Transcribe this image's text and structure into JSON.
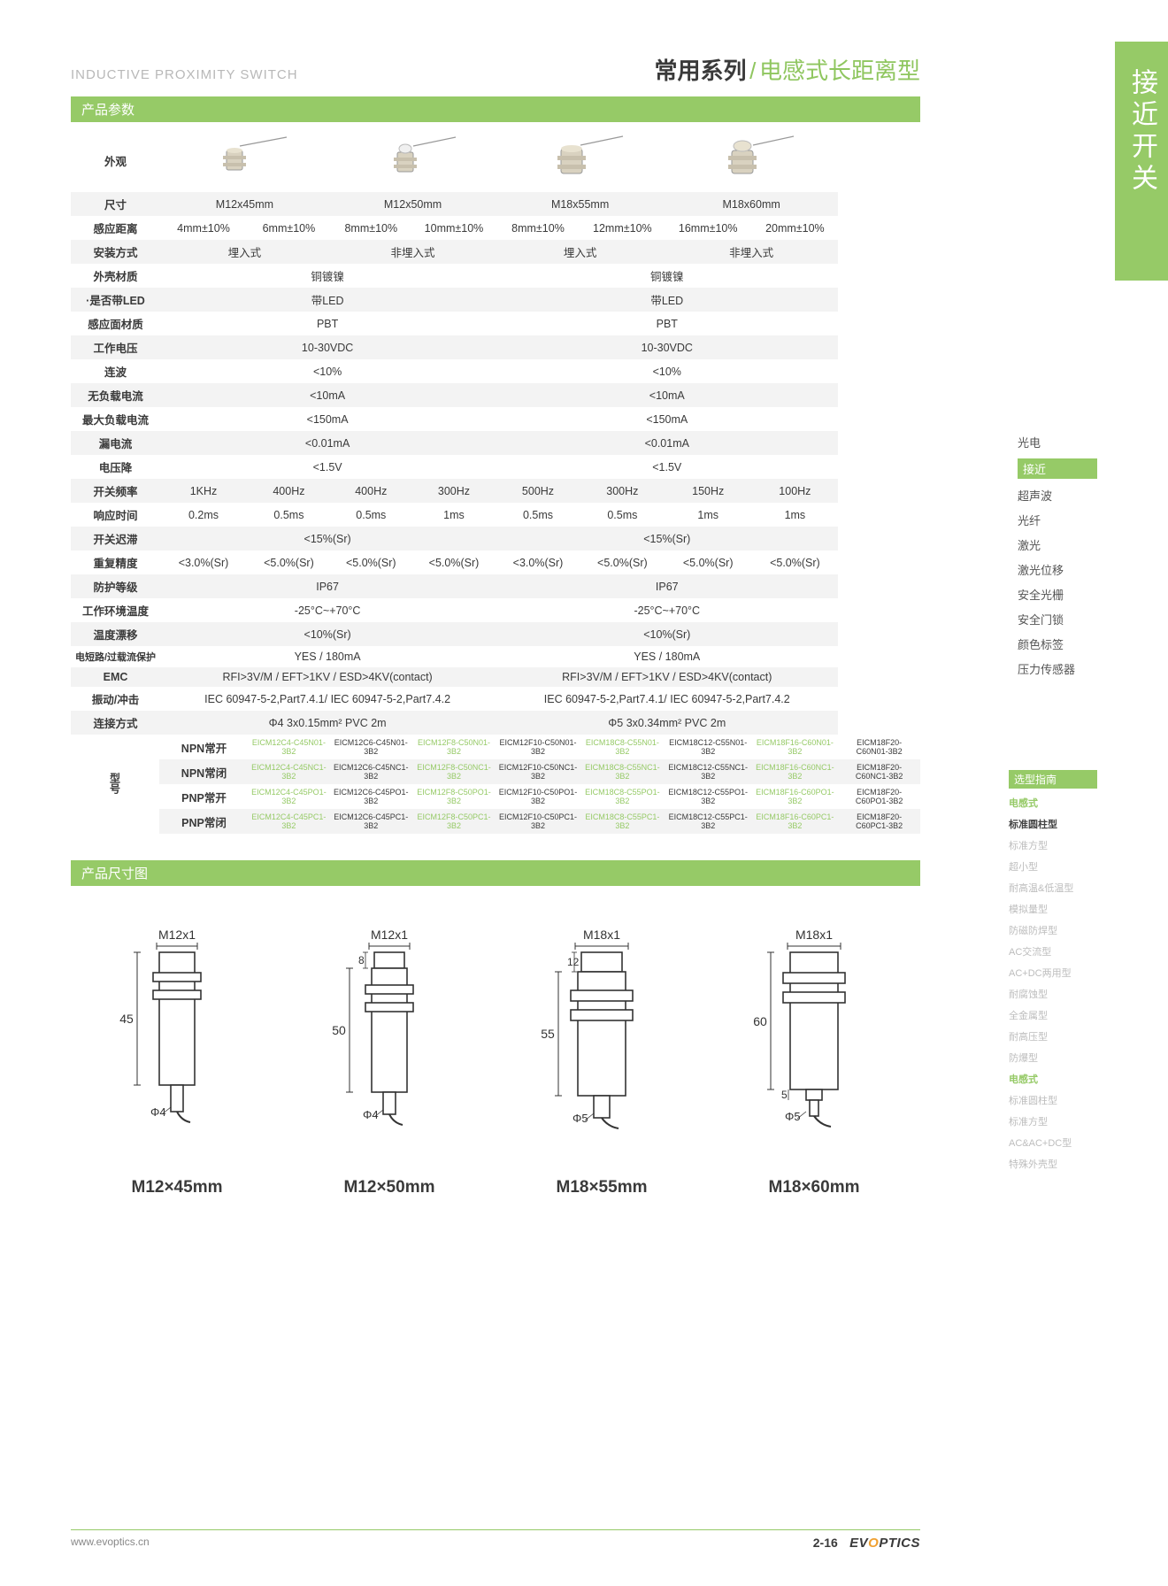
{
  "header": {
    "subtitle": "INDUCTIVE PROXIMITY SWITCH",
    "title_main": "常用系列",
    "title_sub": "电感式长距离型",
    "slash": "/"
  },
  "side_tab": "接近开关",
  "section1": "产品参数",
  "section2": "产品尺寸图",
  "side_nav": [
    "光电",
    "接近",
    "超声波",
    "光纤",
    "激光",
    "激光位移",
    "安全光栅",
    "安全门锁",
    "颜色标签",
    "压力传感器"
  ],
  "side_nav_active_idx": 1,
  "side_nav2_header": "选型指南",
  "side_nav2": [
    {
      "t": "电感式",
      "cls": "accent"
    },
    {
      "t": "标准圆柱型",
      "cls": "bold"
    },
    {
      "t": "标准方型",
      "cls": ""
    },
    {
      "t": "超小型",
      "cls": ""
    },
    {
      "t": "耐高温&低温型",
      "cls": ""
    },
    {
      "t": "模拟量型",
      "cls": ""
    },
    {
      "t": "防磁防焊型",
      "cls": ""
    },
    {
      "t": "AC交流型",
      "cls": ""
    },
    {
      "t": "AC+DC两用型",
      "cls": ""
    },
    {
      "t": "耐腐蚀型",
      "cls": ""
    },
    {
      "t": "全金属型",
      "cls": ""
    },
    {
      "t": "耐高压型",
      "cls": ""
    },
    {
      "t": "防爆型",
      "cls": ""
    },
    {
      "t": "电感式",
      "cls": "accent"
    },
    {
      "t": "标准圆柱型",
      "cls": ""
    },
    {
      "t": "标准方型",
      "cls": ""
    },
    {
      "t": "AC&AC+DC型",
      "cls": ""
    },
    {
      "t": "特殊外壳型",
      "cls": ""
    }
  ],
  "spec": {
    "labels": {
      "appearance": "外观",
      "size": "尺寸",
      "sense_dist": "感应距离",
      "mount": "安装方式",
      "housing": "外壳材质",
      "led": "·是否带LED",
      "face": "感应面材质",
      "voltage": "工作电压",
      "ripple": "连波",
      "noload": "无负载电流",
      "maxload": "最大负载电流",
      "leak": "漏电流",
      "vdrop": "电压降",
      "freq": "开关频率",
      "response": "响应时间",
      "hyst": "开关迟滞",
      "repeat": "重复精度",
      "ip": "防护等级",
      "temp": "工作环境温度",
      "drift": "温度漂移",
      "protect": "电短路/过载流保护",
      "emc": "EMC",
      "vib": "振动/冲击",
      "conn": "连接方式",
      "model": "型号",
      "npn_no": "NPN常开",
      "npn_nc": "NPN常闭",
      "pnp_no": "PNP常开",
      "pnp_nc": "PNP常闭"
    },
    "sizes": [
      "M12x45mm",
      "M12x50mm",
      "M18x55mm",
      "M18x60mm"
    ],
    "sense": [
      "4mm±10%",
      "6mm±10%",
      "8mm±10%",
      "10mm±10%",
      "8mm±10%",
      "12mm±10%",
      "16mm±10%",
      "20mm±10%"
    ],
    "mount": [
      "埋入式",
      "非埋入式",
      "埋入式",
      "非埋入式"
    ],
    "housing": [
      "铜镀镍",
      "铜镀镍"
    ],
    "led": [
      "带LED",
      "带LED"
    ],
    "face": [
      "PBT",
      "PBT"
    ],
    "voltage": [
      "10-30VDC",
      "10-30VDC"
    ],
    "ripple": [
      "<10%",
      "<10%"
    ],
    "noload": [
      "<10mA",
      "<10mA"
    ],
    "maxload": [
      "<150mA",
      "<150mA"
    ],
    "leak": [
      "<0.01mA",
      "<0.01mA"
    ],
    "vdrop": [
      "<1.5V",
      "<1.5V"
    ],
    "freq": [
      "1KHz",
      "400Hz",
      "400Hz",
      "300Hz",
      "500Hz",
      "300Hz",
      "150Hz",
      "100Hz"
    ],
    "response": [
      "0.2ms",
      "0.5ms",
      "0.5ms",
      "1ms",
      "0.5ms",
      "0.5ms",
      "1ms",
      "1ms"
    ],
    "hyst": [
      "<15%(Sr)",
      "<15%(Sr)"
    ],
    "repeat": [
      "<3.0%(Sr)",
      "<5.0%(Sr)",
      "<5.0%(Sr)",
      "<5.0%(Sr)",
      "<3.0%(Sr)",
      "<5.0%(Sr)",
      "<5.0%(Sr)",
      "<5.0%(Sr)"
    ],
    "ip": [
      "IP67",
      "IP67"
    ],
    "temp": [
      "-25°C~+70°C",
      "-25°C~+70°C"
    ],
    "drift": [
      "<10%(Sr)",
      "<10%(Sr)"
    ],
    "protect": [
      "YES / 180mA",
      "YES / 180mA"
    ],
    "emc": [
      "RFI>3V/M / EFT>1KV / ESD>4KV(contact)",
      "RFI>3V/M / EFT>1KV / ESD>4KV(contact)"
    ],
    "vib": [
      "IEC 60947-5-2,Part7.4.1/ IEC 60947-5-2,Part7.4.2",
      "IEC 60947-5-2,Part7.4.1/ IEC 60947-5-2,Part7.4.2"
    ],
    "conn": [
      "Φ4 3x0.15mm² PVC 2m",
      "Φ5 3x0.34mm² PVC 2m"
    ],
    "npn_no": [
      "EICM12C4-C45N01-3B2",
      "EICM12C6-C45N01-3B2",
      "EICM12F8-C50N01-3B2",
      "EICM12F10-C50N01-3B2",
      "EICM18C8-C55N01-3B2",
      "EICM18C12-C55N01-3B2",
      "EICM18F16-C60N01-3B2",
      "EICM18F20-C60N01-3B2"
    ],
    "npn_nc": [
      "EICM12C4-C45NC1-3B2",
      "EICM12C6-C45NC1-3B2",
      "EICM12F8-C50NC1-3B2",
      "EICM12F10-C50NC1-3B2",
      "EICM18C8-C55NC1-3B2",
      "EICM18C12-C55NC1-3B2",
      "EICM18F16-C60NC1-3B2",
      "EICM18F20-C60NC1-3B2"
    ],
    "pnp_no": [
      "EICM12C4-C45PO1-3B2",
      "EICM12C6-C45PO1-3B2",
      "EICM12F8-C50PO1-3B2",
      "EICM12F10-C50PO1-3B2",
      "EICM18C8-C55PO1-3B2",
      "EICM18C12-C55PO1-3B2",
      "EICM18F16-C60PO1-3B2",
      "EICM18F20-C60PO1-3B2"
    ],
    "pnp_nc": [
      "EICM12C4-C45PC1-3B2",
      "EICM12C6-C45PC1-3B2",
      "EICM12F8-C50PC1-3B2",
      "EICM12F10-C50PC1-3B2",
      "EICM18C8-C55PC1-3B2",
      "EICM18C12-C55PC1-3B2",
      "EICM18F16-C60PC1-3B2",
      "EICM18F20-C60PC1-3B2"
    ]
  },
  "dims": {
    "items": [
      {
        "label": "M12×45mm",
        "thread": "M12x1",
        "len": "45",
        "cable": "Φ4",
        "head": ""
      },
      {
        "label": "M12×50mm",
        "thread": "M12x1",
        "len": "50",
        "cable": "Φ4",
        "head": "8"
      },
      {
        "label": "M18×55mm",
        "thread": "M18x1",
        "len": "55",
        "cable": "Φ5",
        "head": "12"
      },
      {
        "label": "M18×60mm",
        "thread": "M18x1",
        "len": "60",
        "cable": "Φ5",
        "head": "5"
      }
    ]
  },
  "footer": {
    "url": "www.evoptics.cn",
    "page": "2-16",
    "brand_prefix": "EV",
    "brand_o": "O",
    "brand_suffix": "PTICS"
  },
  "colors": {
    "green": "#96ca67",
    "gray_row": "#f3f3f3",
    "text": "#3a3a3a",
    "light": "#b8b8b8"
  }
}
